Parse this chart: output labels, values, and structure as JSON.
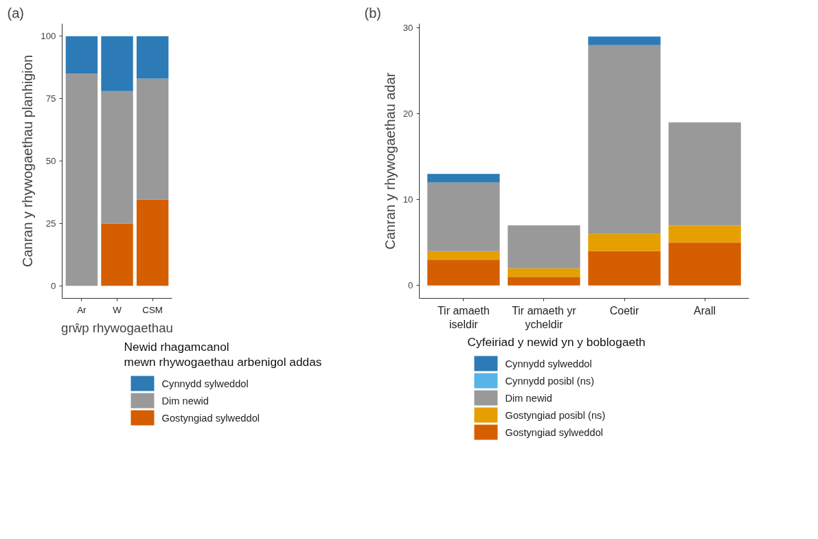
{
  "chart_data": [
    {
      "type": "bar",
      "title": "(a)",
      "xlabel": "grŵp rhywogaethau",
      "ylabel": "Canran y rhywogaethau planhigion",
      "categories": [
        "Ar",
        "W",
        "CSM"
      ],
      "stacked": true,
      "ylim": [
        -5,
        105
      ],
      "yticks": [
        0,
        25,
        50,
        75,
        100
      ],
      "grid": false,
      "legend": "bottom",
      "legend_title": "Newid rhagamcanol\n mewn rhywogaethau arbenigol addas",
      "series": [
        {
          "name": "Gostyngiad sylweddol",
          "color": "#d55e00",
          "values": [
            0,
            25,
            34.5
          ]
        },
        {
          "name": "Dim newid",
          "color": "#999999",
          "values": [
            85,
            53,
            48.5
          ]
        },
        {
          "name": "Cynnydd sylweddol",
          "color": "#2c7bb6",
          "values": [
            15,
            22,
            17
          ]
        }
      ]
    },
    {
      "type": "bar",
      "title": "(b)",
      "ylabel": "Canran y rhywogaethau adar",
      "categories": [
        "Tir amaeth iseldir",
        "Tir amaeth yr ycheldir",
        "Coetir",
        "Arall"
      ],
      "stacked": true,
      "ylim": [
        -1.5,
        30.5
      ],
      "yticks": [
        0,
        10,
        20,
        30
      ],
      "grid": false,
      "legend": "bottom",
      "legend_title": "Cyfeiriad y newid yn y boblogaeth",
      "series": [
        {
          "name": "Gostyngiad sylweddol",
          "color": "#d55e00",
          "values": [
            3,
            1,
            4,
            5
          ]
        },
        {
          "name": "Gostyngiad posibl (ns)",
          "color": "#e69f00",
          "values": [
            1,
            1,
            2,
            2
          ]
        },
        {
          "name": "Dim newid",
          "color": "#999999",
          "values": [
            8,
            5,
            22,
            12
          ]
        },
        {
          "name": "Cynnydd posibl (ns)",
          "color": "#56b4e9",
          "values": [
            0,
            0,
            0,
            0
          ]
        },
        {
          "name": "Cynnydd sylweddol",
          "color": "#2c7bb6",
          "values": [
            1,
            0,
            1,
            0
          ]
        }
      ]
    }
  ]
}
